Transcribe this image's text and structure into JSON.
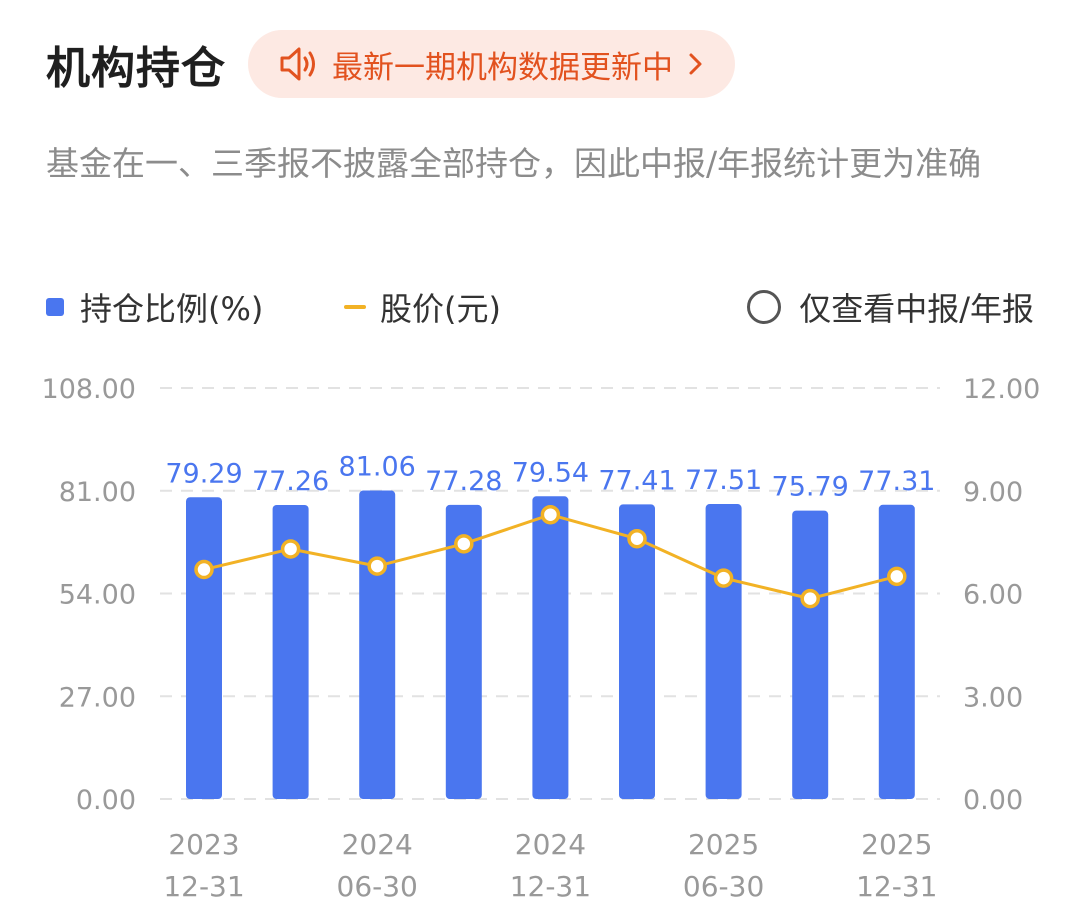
{
  "header": {
    "title": "机构持仓",
    "notice": "最新一期机构数据更新中",
    "speaker_icon": "speaker-icon",
    "chevron_icon": "chevron-right-icon"
  },
  "description": "基金在一、三季报不披露全部持仓，因此中报/年报统计更为准确",
  "legend": {
    "holding": "持仓比例(%)",
    "price": "股价(元)",
    "filter": "仅查看中报/年报"
  },
  "colors": {
    "bar": "#4a76ef",
    "line": "#f2b225",
    "label": "#4a76ef",
    "notice_text": "#e2521f",
    "notice_bg": "#fde9e3",
    "axis_text": "#999999"
  },
  "chart_data": {
    "type": "bar",
    "left_axis": {
      "ticks": [
        "108.00",
        "81.00",
        "54.00",
        "27.00",
        "0.00"
      ],
      "range": [
        0,
        108
      ]
    },
    "right_axis": {
      "ticks": [
        "12.00",
        "9.00",
        "6.00",
        "3.00",
        "0.00"
      ],
      "range": [
        0,
        12
      ]
    },
    "x_labels": [
      {
        "year": "2023",
        "date": "12-31"
      },
      {
        "year": "",
        "date": ""
      },
      {
        "year": "2024",
        "date": "06-30"
      },
      {
        "year": "",
        "date": ""
      },
      {
        "year": "2024",
        "date": "12-31"
      },
      {
        "year": "",
        "date": ""
      },
      {
        "year": "2025",
        "date": "06-30"
      },
      {
        "year": "",
        "date": ""
      },
      {
        "year": "2025",
        "date": "12-31"
      }
    ],
    "series": [
      {
        "name": "持仓比例(%)",
        "type": "bar",
        "axis": "left",
        "values": [
          79.29,
          77.26,
          81.06,
          77.28,
          79.54,
          77.41,
          77.51,
          75.79,
          77.31
        ],
        "labels": [
          "79.29",
          "77.26",
          "81.06",
          "77.28",
          "79.54",
          "77.41",
          "77.51",
          "75.79",
          "77.31"
        ]
      },
      {
        "name": "股价(元)",
        "type": "line",
        "axis": "right",
        "values": [
          6.7,
          7.3,
          6.8,
          7.45,
          8.3,
          7.6,
          6.45,
          5.85,
          6.5
        ]
      }
    ],
    "grid": true
  }
}
